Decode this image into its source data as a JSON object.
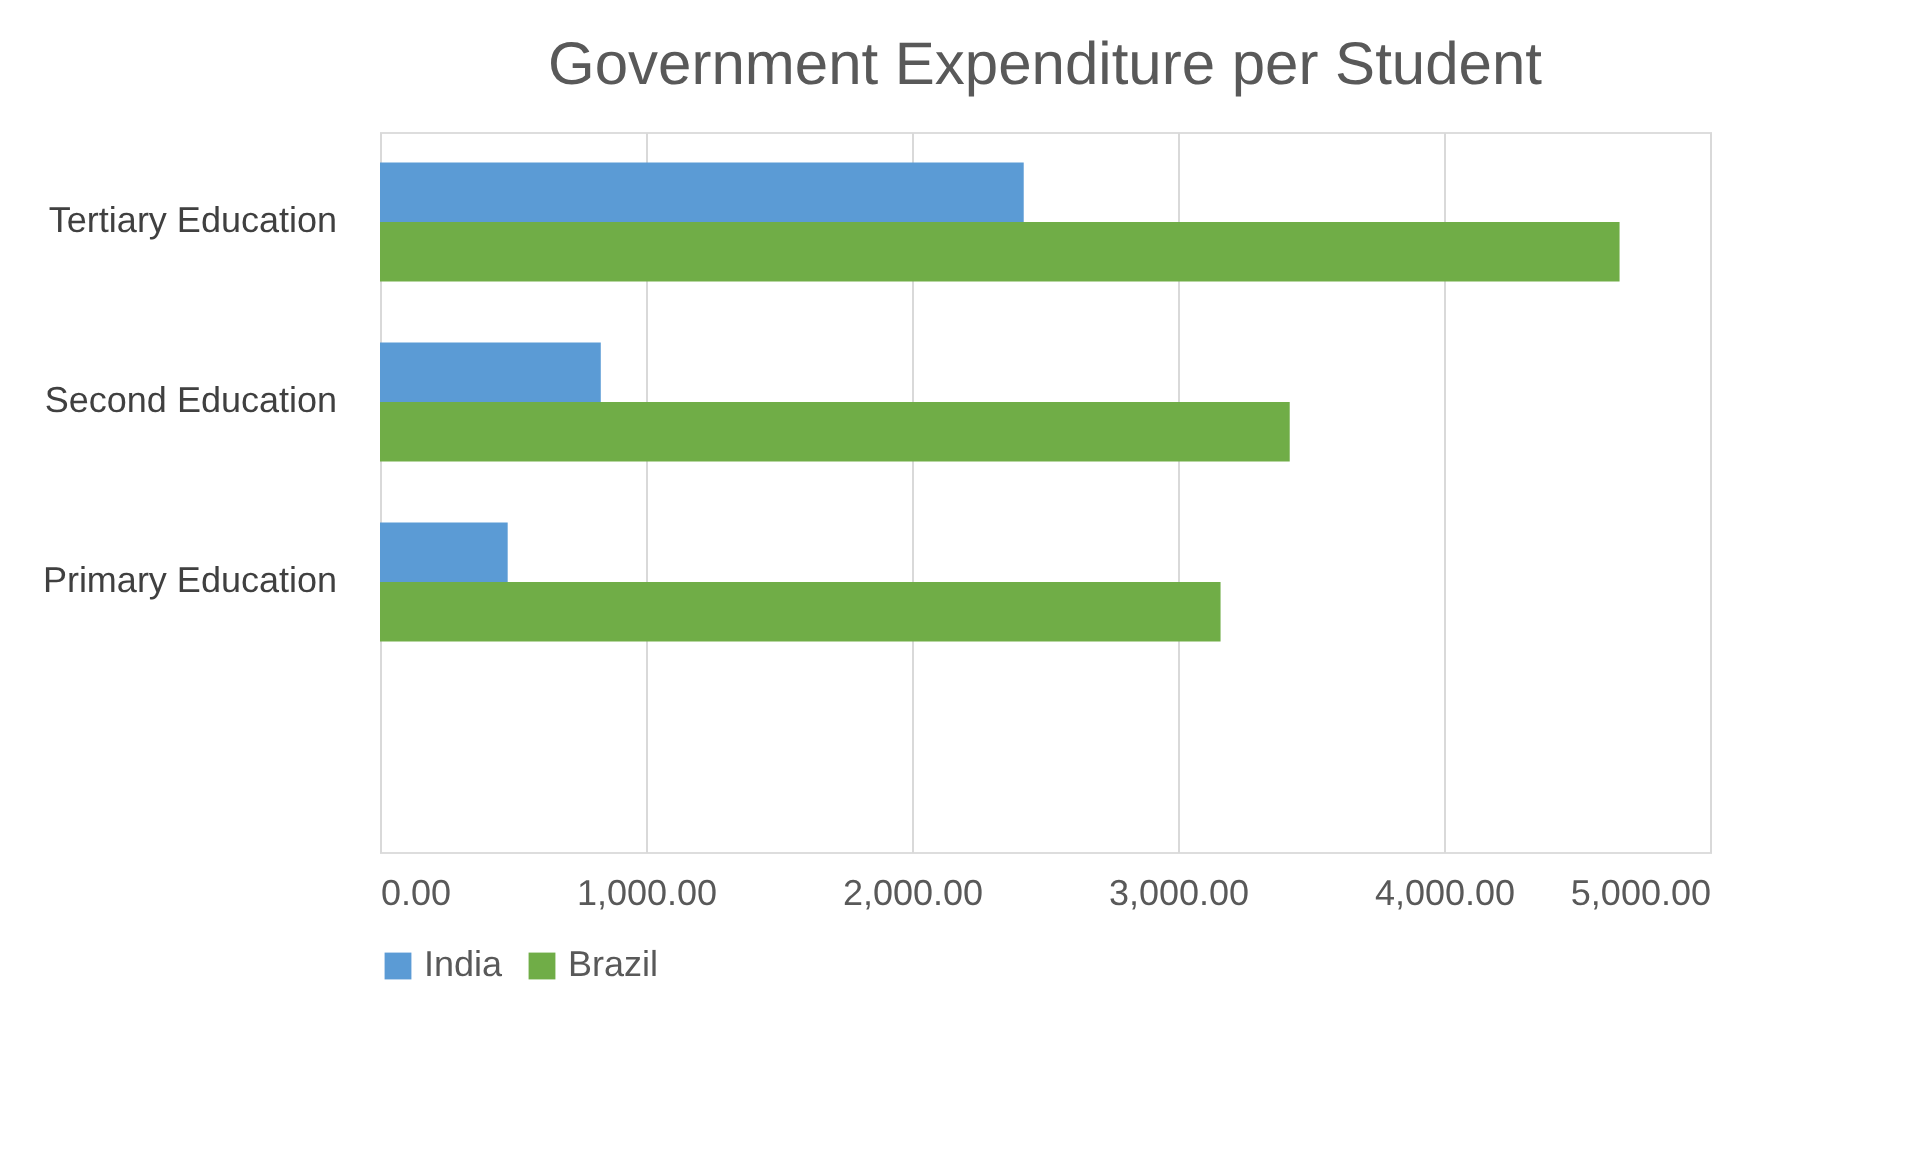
{
  "chart_data": {
    "type": "bar",
    "orientation": "horizontal",
    "title": "Government Expenditure per Student",
    "categories": [
      "Tertiary Education",
      "Second Education",
      "Primary Education",
      null
    ],
    "series": [
      {
        "name": "India",
        "color": "#5b9bd5",
        "values": [
          2420,
          830,
          480,
          null
        ]
      },
      {
        "name": "Brazil",
        "color": "#70ad47",
        "values": [
          4660,
          3420,
          3160,
          null
        ]
      }
    ],
    "xlim": [
      0,
      5000
    ],
    "xticks": [
      {
        "value": 0,
        "label": "0.00"
      },
      {
        "value": 1000,
        "label": "1,000.00"
      },
      {
        "value": 2000,
        "label": "2,000.00"
      },
      {
        "value": 3000,
        "label": "3,000.00"
      },
      {
        "value": 4000,
        "label": "4,000.00"
      },
      {
        "value": 5000,
        "label": "5,000.00"
      }
    ],
    "grid": "x",
    "legend": "bottom"
  }
}
